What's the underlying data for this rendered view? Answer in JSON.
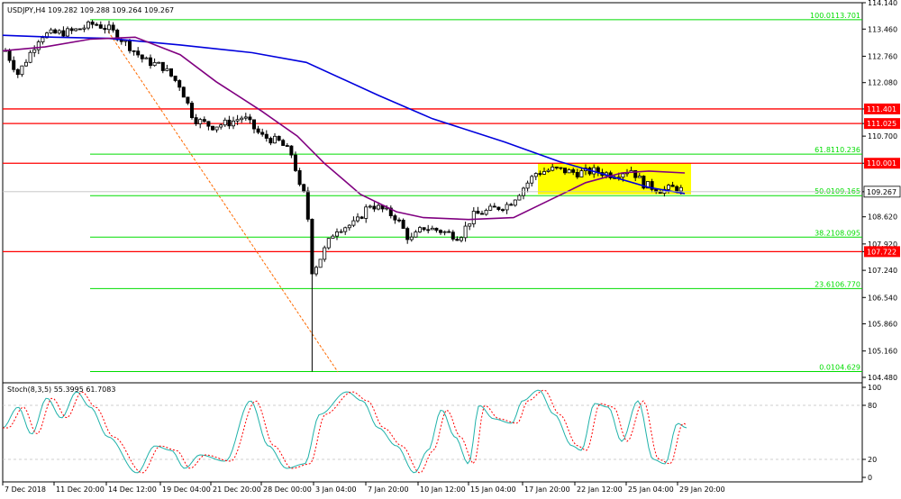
{
  "chart_data": {
    "type": "candlestick",
    "symbol_title": "USDJPY,H4  109.282 109.288 109.264 109.267",
    "price_axis": {
      "ylim": [
        104.34,
        114.14
      ],
      "ticks": [
        "114.140",
        "113.460",
        "112.760",
        "112.080",
        "111.401",
        "111.025",
        "110.700",
        "110.001",
        "109.267",
        "108.620",
        "107.920",
        "107.722",
        "107.240",
        "106.540",
        "105.860",
        "105.160",
        "104.480"
      ],
      "highlighted_levels": [
        {
          "label": "111.401",
          "value": 111.401,
          "color": "#ff0000"
        },
        {
          "label": "111.025",
          "value": 111.025,
          "color": "#ff0000"
        },
        {
          "label": "110.001",
          "value": 110.001,
          "color": "#ff0000"
        },
        {
          "label": "107.722",
          "value": 107.722,
          "color": "#ff0000"
        }
      ],
      "current_price_label": "109.267",
      "current_price": 109.267
    },
    "x_labels": [
      "7 Dec 2018",
      "11 Dec 20:00",
      "14 Dec 12:00",
      "19 Dec 04:00",
      "21 Dec 20:00",
      "28 Dec 00:00",
      "3 Jan 04:00",
      "7 Jan 20:00",
      "10 Jan 12:00",
      "15 Jan 04:00",
      "17 Jan 20:00",
      "22 Jan 12:00",
      "25 Jan 04:00",
      "29 Jan 20:00"
    ],
    "horizontal_levels": [
      {
        "value": 111.401,
        "color": "#ff0000"
      },
      {
        "value": 111.025,
        "color": "#ff0000"
      },
      {
        "value": 110.001,
        "color": "#ff0000"
      },
      {
        "value": 107.722,
        "color": "#ff0000"
      }
    ],
    "fibonacci": [
      {
        "label": "100.0113.701",
        "value": 113.701
      },
      {
        "label": "61.8110.236",
        "value": 110.236
      },
      {
        "label": "50.0109.165",
        "value": 109.165
      },
      {
        "label": "38.2108.095",
        "value": 108.095
      },
      {
        "label": "23.6106.770",
        "value": 106.77
      },
      {
        "label": "0.0104.629",
        "value": 104.629
      }
    ],
    "fib_color": "#00dd00",
    "highlight_box": {
      "price_top": 110.0,
      "price_bottom": 109.2,
      "color": "#ffff00"
    },
    "ma_fast_color": "#800080",
    "ma_slow_color": "#0000dd",
    "oscillator": {
      "title": "Stoch(8,3,5) 55.3995 61.7083",
      "ylim": [
        0,
        100
      ],
      "ticks": [
        "100",
        "80",
        "20",
        "0"
      ],
      "levels": [
        80,
        20
      ],
      "main_color": "#20b2aa",
      "signal_color": "#ff0000"
    }
  }
}
